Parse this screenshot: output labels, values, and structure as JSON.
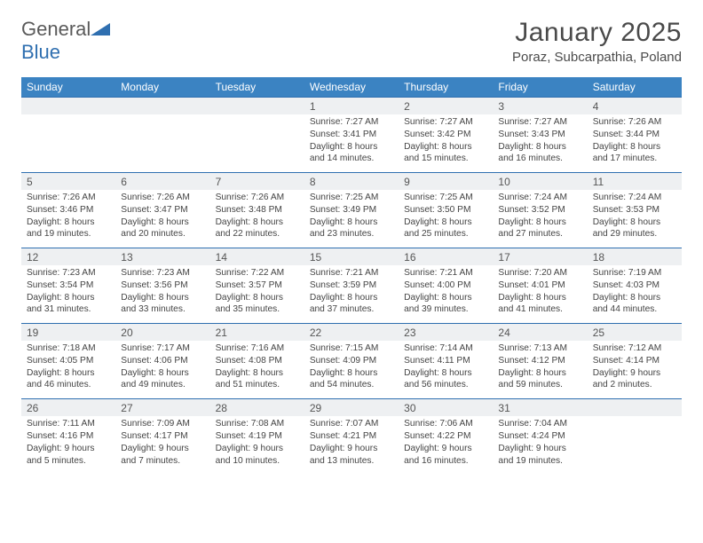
{
  "brand": {
    "part1": "General",
    "part2": "Blue"
  },
  "title": "January 2025",
  "location": "Poraz, Subcarpathia, Poland",
  "colors": {
    "header_bg": "#3b83c2",
    "header_text": "#ffffff",
    "daynum_bg": "#eef0f2",
    "border": "#2f6fb0",
    "body_text": "#444444",
    "title_text": "#4a4a4a"
  },
  "weekdays": [
    "Sunday",
    "Monday",
    "Tuesday",
    "Wednesday",
    "Thursday",
    "Friday",
    "Saturday"
  ],
  "weeks": [
    [
      null,
      null,
      null,
      {
        "n": "1",
        "sunrise": "7:27 AM",
        "sunset": "3:41 PM",
        "daylight": "8 hours and 14 minutes."
      },
      {
        "n": "2",
        "sunrise": "7:27 AM",
        "sunset": "3:42 PM",
        "daylight": "8 hours and 15 minutes."
      },
      {
        "n": "3",
        "sunrise": "7:27 AM",
        "sunset": "3:43 PM",
        "daylight": "8 hours and 16 minutes."
      },
      {
        "n": "4",
        "sunrise": "7:26 AM",
        "sunset": "3:44 PM",
        "daylight": "8 hours and 17 minutes."
      }
    ],
    [
      {
        "n": "5",
        "sunrise": "7:26 AM",
        "sunset": "3:46 PM",
        "daylight": "8 hours and 19 minutes."
      },
      {
        "n": "6",
        "sunrise": "7:26 AM",
        "sunset": "3:47 PM",
        "daylight": "8 hours and 20 minutes."
      },
      {
        "n": "7",
        "sunrise": "7:26 AM",
        "sunset": "3:48 PM",
        "daylight": "8 hours and 22 minutes."
      },
      {
        "n": "8",
        "sunrise": "7:25 AM",
        "sunset": "3:49 PM",
        "daylight": "8 hours and 23 minutes."
      },
      {
        "n": "9",
        "sunrise": "7:25 AM",
        "sunset": "3:50 PM",
        "daylight": "8 hours and 25 minutes."
      },
      {
        "n": "10",
        "sunrise": "7:24 AM",
        "sunset": "3:52 PM",
        "daylight": "8 hours and 27 minutes."
      },
      {
        "n": "11",
        "sunrise": "7:24 AM",
        "sunset": "3:53 PM",
        "daylight": "8 hours and 29 minutes."
      }
    ],
    [
      {
        "n": "12",
        "sunrise": "7:23 AM",
        "sunset": "3:54 PM",
        "daylight": "8 hours and 31 minutes."
      },
      {
        "n": "13",
        "sunrise": "7:23 AM",
        "sunset": "3:56 PM",
        "daylight": "8 hours and 33 minutes."
      },
      {
        "n": "14",
        "sunrise": "7:22 AM",
        "sunset": "3:57 PM",
        "daylight": "8 hours and 35 minutes."
      },
      {
        "n": "15",
        "sunrise": "7:21 AM",
        "sunset": "3:59 PM",
        "daylight": "8 hours and 37 minutes."
      },
      {
        "n": "16",
        "sunrise": "7:21 AM",
        "sunset": "4:00 PM",
        "daylight": "8 hours and 39 minutes."
      },
      {
        "n": "17",
        "sunrise": "7:20 AM",
        "sunset": "4:01 PM",
        "daylight": "8 hours and 41 minutes."
      },
      {
        "n": "18",
        "sunrise": "7:19 AM",
        "sunset": "4:03 PM",
        "daylight": "8 hours and 44 minutes."
      }
    ],
    [
      {
        "n": "19",
        "sunrise": "7:18 AM",
        "sunset": "4:05 PM",
        "daylight": "8 hours and 46 minutes."
      },
      {
        "n": "20",
        "sunrise": "7:17 AM",
        "sunset": "4:06 PM",
        "daylight": "8 hours and 49 minutes."
      },
      {
        "n": "21",
        "sunrise": "7:16 AM",
        "sunset": "4:08 PM",
        "daylight": "8 hours and 51 minutes."
      },
      {
        "n": "22",
        "sunrise": "7:15 AM",
        "sunset": "4:09 PM",
        "daylight": "8 hours and 54 minutes."
      },
      {
        "n": "23",
        "sunrise": "7:14 AM",
        "sunset": "4:11 PM",
        "daylight": "8 hours and 56 minutes."
      },
      {
        "n": "24",
        "sunrise": "7:13 AM",
        "sunset": "4:12 PM",
        "daylight": "8 hours and 59 minutes."
      },
      {
        "n": "25",
        "sunrise": "7:12 AM",
        "sunset": "4:14 PM",
        "daylight": "9 hours and 2 minutes."
      }
    ],
    [
      {
        "n": "26",
        "sunrise": "7:11 AM",
        "sunset": "4:16 PM",
        "daylight": "9 hours and 5 minutes."
      },
      {
        "n": "27",
        "sunrise": "7:09 AM",
        "sunset": "4:17 PM",
        "daylight": "9 hours and 7 minutes."
      },
      {
        "n": "28",
        "sunrise": "7:08 AM",
        "sunset": "4:19 PM",
        "daylight": "9 hours and 10 minutes."
      },
      {
        "n": "29",
        "sunrise": "7:07 AM",
        "sunset": "4:21 PM",
        "daylight": "9 hours and 13 minutes."
      },
      {
        "n": "30",
        "sunrise": "7:06 AM",
        "sunset": "4:22 PM",
        "daylight": "9 hours and 16 minutes."
      },
      {
        "n": "31",
        "sunrise": "7:04 AM",
        "sunset": "4:24 PM",
        "daylight": "9 hours and 19 minutes."
      },
      null
    ]
  ],
  "labels": {
    "sunrise": "Sunrise:",
    "sunset": "Sunset:",
    "daylight": "Daylight:"
  }
}
